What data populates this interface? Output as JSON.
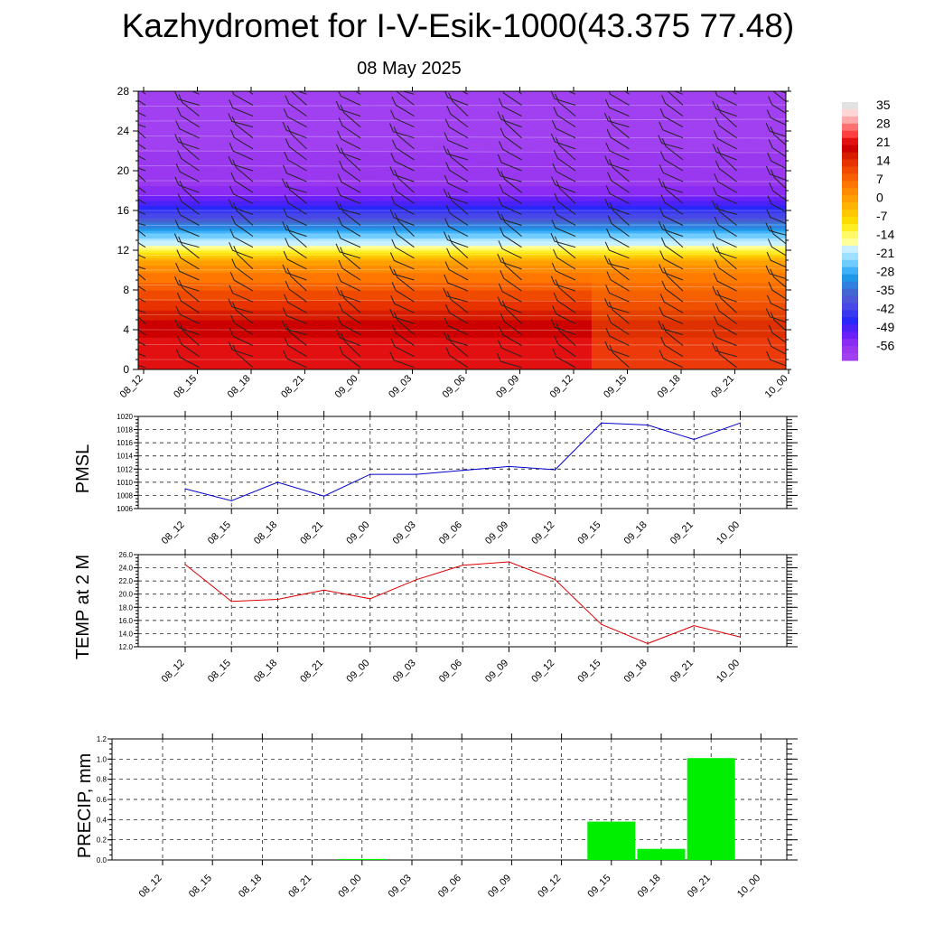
{
  "title": "Kazhydromet for I-V-Esik-1000(43.375 77.48)",
  "subtitle": "08 May 2025",
  "chart_data": [
    {
      "type": "heatmap",
      "id": "cross-section",
      "x_ticks": [
        "08_12",
        "08_15",
        "08_18",
        "08_21",
        "09_00",
        "09_03",
        "09_06",
        "09_09",
        "09_12",
        "09_15",
        "09_18",
        "09_21",
        "10_00"
      ],
      "y_ticks": [
        0,
        4,
        8,
        12,
        16,
        20,
        24,
        28
      ],
      "ylim": [
        0,
        28
      ],
      "colorbar_labels": [
        "35",
        "28",
        "21",
        "14",
        "7",
        "0",
        "-7",
        "-14",
        "-21",
        "-28",
        "-35",
        "-42",
        "-49",
        "-56"
      ],
      "colorbar_range": [
        -63,
        42
      ],
      "palette": [
        "#e2e2e2",
        "#ffd6d6",
        "#ffaaaa",
        "#ff7070",
        "#ff4040",
        "#e21010",
        "#cc0000",
        "#d81c00",
        "#e83300",
        "#f04a00",
        "#f76000",
        "#ff7600",
        "#ff8c00",
        "#ffa000",
        "#ffb400",
        "#ffc800",
        "#ffdc00",
        "#ffee22",
        "#fffa66",
        "#ffff9a",
        "#c8f0ff",
        "#9ee0ff",
        "#70ccff",
        "#40b0f8",
        "#2098e8",
        "#3080e0",
        "#4068d0",
        "#4c58d8",
        "#4848e8",
        "#3838f0",
        "#2828f8",
        "#4a22f8",
        "#6a20f8",
        "#8a2cf4",
        "#9a38f0",
        "#a040f0"
      ],
      "temp_profile": [
        {
          "h": 0,
          "t": 27
        },
        {
          "h": 4,
          "t": 24
        },
        {
          "h": 8,
          "t": 13
        },
        {
          "h": 11,
          "t": 2
        },
        {
          "h": 12,
          "t": -12
        },
        {
          "h": 14,
          "t": -28
        },
        {
          "h": 16,
          "t": -45
        },
        {
          "h": 18,
          "t": -57
        },
        {
          "h": 21,
          "t": -58
        },
        {
          "h": 23,
          "t": -62
        },
        {
          "h": 28,
          "t": -63
        }
      ]
    },
    {
      "type": "line",
      "id": "pmsl",
      "ylabel": "PMSL",
      "categories": [
        "08_12",
        "08_15",
        "08_18",
        "08_21",
        "09_00",
        "09_03",
        "09_06",
        "09_09",
        "09_12",
        "09_15",
        "09_18",
        "09_21",
        "10_00"
      ],
      "values": [
        1009.0,
        1007.2,
        1010.0,
        1007.9,
        1011.2,
        1011.2,
        1011.8,
        1012.4,
        1011.9,
        1019.0,
        1018.7,
        1016.5,
        1019.0
      ],
      "ylim": [
        1006,
        1020
      ],
      "yticks": [
        "1006",
        "1008",
        "1010",
        "1012",
        "1014",
        "1016",
        "1018",
        "1020"
      ],
      "color": "#0000cc",
      "grid": true
    },
    {
      "type": "line",
      "id": "temp2m",
      "ylabel": "TEMP at 2 M",
      "categories": [
        "08_12",
        "08_15",
        "08_18",
        "08_21",
        "09_00",
        "09_03",
        "09_06",
        "09_09",
        "09_12",
        "09_15",
        "09_18",
        "09_21",
        "10_00"
      ],
      "values": [
        24.5,
        18.9,
        19.2,
        20.6,
        19.3,
        22.2,
        24.4,
        24.9,
        22.2,
        15.4,
        12.5,
        15.2,
        13.5
      ],
      "ylim": [
        12,
        26
      ],
      "yticks": [
        "12.0",
        "14.0",
        "16.0",
        "18.0",
        "20.0",
        "22.0",
        "24.0",
        "26.0"
      ],
      "color": "#dd0000",
      "grid": true
    },
    {
      "type": "bar",
      "id": "precip",
      "ylabel": "PRECIP, mm",
      "categories": [
        "08_12",
        "08_15",
        "08_18",
        "08_21",
        "09_00",
        "09_03",
        "09_06",
        "09_09",
        "09_12",
        "09_15",
        "09_18",
        "09_21",
        "10_00"
      ],
      "values": [
        0,
        0,
        0,
        0,
        0.01,
        0,
        0,
        0,
        0,
        0.38,
        0.11,
        1.01,
        0
      ],
      "ylim": [
        0,
        1.2
      ],
      "yticks": [
        "0.0",
        "0.2",
        "0.4",
        "0.6",
        "0.8",
        "1.0",
        "1.2"
      ],
      "color": "#00ee00",
      "grid": true
    }
  ]
}
